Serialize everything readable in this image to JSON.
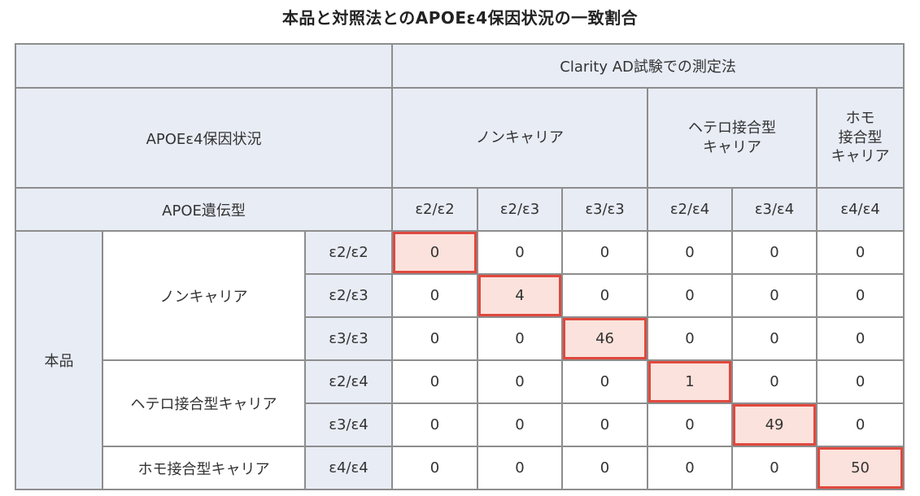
{
  "title": "本品と対照法とのAPOEε4保因状況の一致割合",
  "header": {
    "corner_label": "",
    "method_label": "Clarity AD試験での測定法",
    "status_label": "APOEε4保因状況",
    "genotype_label": "APOE遺伝型",
    "groups": [
      "ノンキャリア",
      "ヘテロ接合型\nキャリア",
      "ホモ\n接合型\nキャリア"
    ],
    "genotypes": [
      "ε2/ε2",
      "ε2/ε3",
      "ε3/ε3",
      "ε2/ε4",
      "ε3/ε4",
      "ε4/ε4"
    ]
  },
  "body": {
    "product_label": "本品",
    "groups": [
      "ノンキャリア",
      "ヘテロ接合型キャリア",
      "ホモ接合型キャリア"
    ],
    "rows": [
      {
        "genotype": "ε2/ε2",
        "values": [
          "0",
          "0",
          "0",
          "0",
          "0",
          "0"
        ]
      },
      {
        "genotype": "ε2/ε3",
        "values": [
          "0",
          "4",
          "0",
          "0",
          "0",
          "0"
        ]
      },
      {
        "genotype": "ε3/ε3",
        "values": [
          "0",
          "0",
          "46",
          "0",
          "0",
          "0"
        ]
      },
      {
        "genotype": "ε2/ε4",
        "values": [
          "0",
          "0",
          "0",
          "1",
          "0",
          "0"
        ]
      },
      {
        "genotype": "ε3/ε4",
        "values": [
          "0",
          "0",
          "0",
          "0",
          "49",
          "0"
        ]
      },
      {
        "genotype": "ε4/ε4",
        "values": [
          "0",
          "0",
          "0",
          "0",
          "0",
          "50"
        ]
      }
    ]
  },
  "colors": {
    "header_bg": "#e8ecf5",
    "highlight_bg": "#fbe2dc",
    "highlight_border": "#e0483e",
    "grid_line": "#8d8d8d"
  }
}
